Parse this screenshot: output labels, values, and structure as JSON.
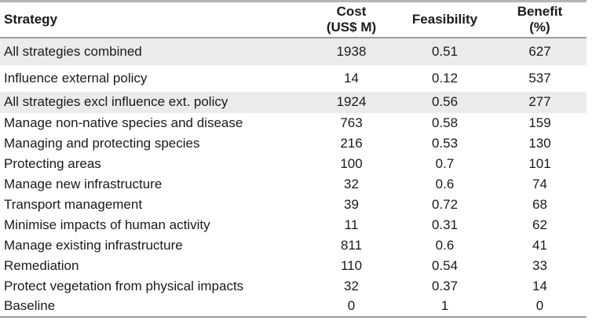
{
  "table": {
    "columns": [
      {
        "label": "Strategy",
        "sub": ""
      },
      {
        "label": "Cost",
        "sub": "(US$ M)"
      },
      {
        "label": "Feasibility",
        "sub": ""
      },
      {
        "label": "Benefit",
        "sub": "(%)"
      }
    ],
    "rows": [
      {
        "strategy": "All strategies combined",
        "cost": "1938",
        "feasibility": "0.51",
        "benefit": "627",
        "shaded": true
      },
      {
        "strategy": "Influence external policy",
        "cost": "14",
        "feasibility": "0.12",
        "benefit": "537",
        "shaded": false
      },
      {
        "strategy": "All strategies excl influence ext. policy",
        "cost": "1924",
        "feasibility": "0.56",
        "benefit": "277",
        "shaded": true
      },
      {
        "strategy": "Manage non-native species and disease",
        "cost": "763",
        "feasibility": "0.58",
        "benefit": "159",
        "shaded": false
      },
      {
        "strategy": "Managing and protecting species",
        "cost": "216",
        "feasibility": "0.53",
        "benefit": "130",
        "shaded": false
      },
      {
        "strategy": "Protecting areas",
        "cost": "100",
        "feasibility": "0.7",
        "benefit": "101",
        "shaded": false
      },
      {
        "strategy": "Manage new infrastructure",
        "cost": "32",
        "feasibility": "0.6",
        "benefit": "74",
        "shaded": false
      },
      {
        "strategy": "Transport management",
        "cost": "39",
        "feasibility": "0.72",
        "benefit": "68",
        "shaded": false
      },
      {
        "strategy": "Minimise impacts of human activity",
        "cost": "11",
        "feasibility": "0.31",
        "benefit": "62",
        "shaded": false
      },
      {
        "strategy": "Manage existing infrastructure",
        "cost": "811",
        "feasibility": "0.6",
        "benefit": "41",
        "shaded": false
      },
      {
        "strategy": "Remediation",
        "cost": "110",
        "feasibility": "0.54",
        "benefit": "33",
        "shaded": false
      },
      {
        "strategy": "Protect vegetation from physical impacts",
        "cost": "32",
        "feasibility": "0.37",
        "benefit": "14",
        "shaded": false
      },
      {
        "strategy": "Baseline",
        "cost": "0",
        "feasibility": "1",
        "benefit": "0",
        "shaded": false
      }
    ]
  },
  "colors": {
    "row_shading": "#ebebeb",
    "rule": "#9c9c9c",
    "top_rule": "#b5b5b5",
    "text": "#1a1a1a"
  },
  "chart_data": {
    "type": "table",
    "title": "",
    "columns": [
      "Strategy",
      "Cost (US$ M)",
      "Feasibility",
      "Benefit (%)"
    ],
    "rows": [
      [
        "All strategies combined",
        1938,
        0.51,
        627
      ],
      [
        "Influence external policy",
        14,
        0.12,
        537
      ],
      [
        "All strategies excl influence ext. policy",
        1924,
        0.56,
        277
      ],
      [
        "Manage non-native species and disease",
        763,
        0.58,
        159
      ],
      [
        "Managing and protecting species",
        216,
        0.53,
        130
      ],
      [
        "Protecting areas",
        100,
        0.7,
        101
      ],
      [
        "Manage new infrastructure",
        32,
        0.6,
        74
      ],
      [
        "Transport management",
        39,
        0.72,
        68
      ],
      [
        "Minimise impacts of human activity",
        11,
        0.31,
        62
      ],
      [
        "Manage existing infrastructure",
        811,
        0.6,
        41
      ],
      [
        "Remediation",
        110,
        0.54,
        33
      ],
      [
        "Protect vegetation from physical impacts",
        32,
        0.37,
        14
      ],
      [
        "Baseline",
        0,
        1,
        0
      ]
    ]
  }
}
